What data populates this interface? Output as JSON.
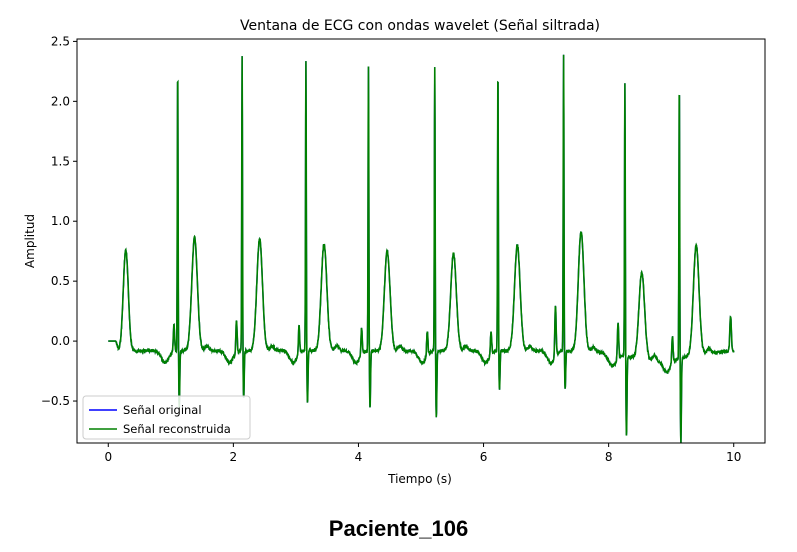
{
  "caption": "Paciente_106",
  "chart_data": {
    "type": "line",
    "title": "Ventana de ECG con ondas wavelet (Señal siltrada)",
    "xlabel": "Tiempo (s)",
    "ylabel": "Amplitud",
    "xlim": [
      -0.5,
      10.5
    ],
    "ylim": [
      -0.85,
      2.52
    ],
    "xticks": [
      0,
      2,
      4,
      6,
      8,
      10
    ],
    "xtick_labels": [
      "0",
      "2",
      "4",
      "6",
      "8",
      "10"
    ],
    "yticks": [
      -0.5,
      0.0,
      0.5,
      1.0,
      1.5,
      2.0,
      2.5
    ],
    "ytick_labels": [
      "−0.5",
      "0.0",
      "0.5",
      "1.0",
      "1.5",
      "2.0",
      "2.5"
    ],
    "grid": false,
    "legend_position": "lower-left",
    "series": [
      {
        "name": "Señal original",
        "color": "#0000ff"
      },
      {
        "name": "Señal reconstruida",
        "color": "#008000"
      }
    ],
    "beats": [
      {
        "p_t": 0.28,
        "p_amp": 0.76,
        "q_t": 1.05,
        "q_amp": 0.17,
        "r_t": 1.11,
        "r_amp": 2.29,
        "s_amp": -0.47,
        "t_t": 1.38,
        "t_amp": 0.82
      },
      {
        "q_t": 2.05,
        "q_amp": 0.22,
        "r_t": 2.14,
        "r_amp": 2.37,
        "s_amp": -0.4,
        "t_t": 2.42,
        "t_amp": 0.81
      },
      {
        "q_t": 3.05,
        "q_amp": 0.19,
        "r_t": 3.16,
        "r_amp": 2.34,
        "s_amp": -0.43,
        "t_t": 3.45,
        "t_amp": 0.77
      },
      {
        "q_t": 4.05,
        "q_amp": 0.17,
        "r_t": 4.16,
        "r_amp": 2.3,
        "s_amp": -0.48,
        "t_t": 4.46,
        "t_amp": 0.71
      },
      {
        "q_t": 5.1,
        "q_amp": 0.15,
        "r_t": 5.22,
        "r_amp": 2.3,
        "s_amp": -0.57,
        "t_t": 5.52,
        "t_amp": 0.69
      },
      {
        "q_t": 6.12,
        "q_amp": 0.14,
        "r_t": 6.23,
        "r_amp": 2.29,
        "s_amp": -0.33,
        "t_t": 6.54,
        "t_amp": 0.76
      },
      {
        "q_t": 7.15,
        "q_amp": 0.38,
        "r_t": 7.28,
        "r_amp": 2.38,
        "s_amp": -0.33,
        "t_t": 7.56,
        "t_amp": 0.88
      },
      {
        "q_t": 8.15,
        "q_amp": 0.25,
        "r_t": 8.26,
        "r_amp": 2.21,
        "s_amp": -0.66,
        "t_t": 8.53,
        "t_amp": 0.6
      },
      {
        "q_t": 9.02,
        "q_amp": 0.18,
        "r_t": 9.13,
        "r_amp": 2.25,
        "s_amp": -0.7,
        "t_t": 9.4,
        "t_amp": 0.8
      }
    ],
    "end_point": {
      "t": 9.95,
      "amp": 0.1
    },
    "t_range": [
      0,
      10
    ]
  }
}
